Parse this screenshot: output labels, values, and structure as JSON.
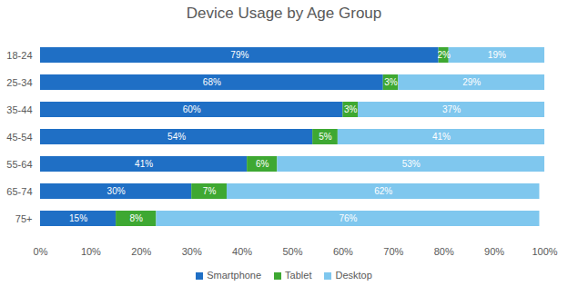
{
  "chart_data": {
    "type": "bar",
    "title": "Device Usage by Age Group",
    "orientation": "horizontal",
    "stacked": true,
    "data_labels": true,
    "grid": false,
    "legend": "bottom",
    "categories": [
      "18-24",
      "25-34",
      "35-44",
      "45-54",
      "55-64",
      "65-74",
      "75+"
    ],
    "series": [
      {
        "name": "Smartphone",
        "color": "#1f6fc5",
        "values": [
          79,
          68,
          60,
          54,
          41,
          30,
          15
        ],
        "value_labels": [
          "79%",
          "68%",
          "60%",
          "54%",
          "41%",
          "30%",
          "15%"
        ]
      },
      {
        "name": "Tablet",
        "color": "#3ea832",
        "values": [
          2,
          3,
          3,
          5,
          6,
          7,
          8
        ],
        "value_labels": [
          "2%",
          "3%",
          "3%",
          "5%",
          "6%",
          "7%",
          "8%"
        ]
      },
      {
        "name": "Desktop",
        "color": "#7fc7ee",
        "values": [
          19,
          29,
          37,
          41,
          53,
          62,
          76
        ],
        "value_labels": [
          "19%",
          "29%",
          "37%",
          "41%",
          "53%",
          "62%",
          "76%"
        ]
      }
    ],
    "xlim": [
      0,
      100
    ],
    "xticks": [
      {
        "value": 0,
        "label": "0%"
      },
      {
        "value": 10,
        "label": "10%"
      },
      {
        "value": 20,
        "label": "20%"
      },
      {
        "value": 30,
        "label": "30%"
      },
      {
        "value": 40,
        "label": "40%"
      },
      {
        "value": 50,
        "label": "50%"
      },
      {
        "value": 60,
        "label": "60%"
      },
      {
        "value": 70,
        "label": "70%"
      },
      {
        "value": 80,
        "label": "80%"
      },
      {
        "value": 90,
        "label": "90%"
      },
      {
        "value": 100,
        "label": "100%"
      }
    ]
  }
}
